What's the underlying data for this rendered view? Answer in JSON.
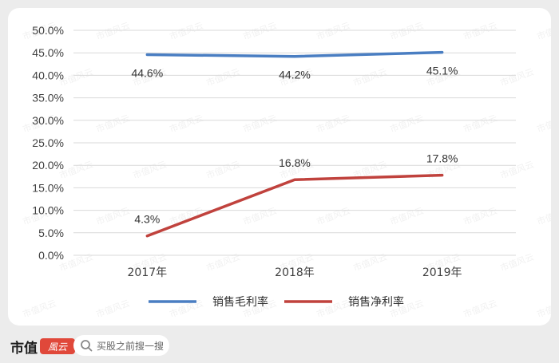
{
  "chart_data": {
    "type": "line",
    "title": "",
    "xlabel": "",
    "ylabel": "",
    "categories": [
      "2017年",
      "2018年",
      "2019年"
    ],
    "ylim": [
      0,
      50
    ],
    "yticks": [
      "0.0%",
      "5.0%",
      "10.0%",
      "15.0%",
      "20.0%",
      "25.0%",
      "30.0%",
      "35.0%",
      "40.0%",
      "45.0%",
      "50.0%"
    ],
    "grid": true,
    "legend_position": "bottom",
    "series": [
      {
        "name": "销售毛利率",
        "color": "#4a7ec2",
        "values": [
          44.6,
          44.2,
          45.1
        ],
        "labels": [
          "44.6%",
          "44.2%",
          "45.1%"
        ],
        "label_side": "below"
      },
      {
        "name": "销售净利率",
        "color": "#c0423d",
        "values": [
          4.3,
          16.8,
          17.8
        ],
        "labels": [
          "4.3%",
          "16.8%",
          "17.8%"
        ],
        "label_side": "above"
      }
    ]
  },
  "watermark": "市值风云",
  "footer": {
    "brand": "市值",
    "brand_seal": "風云",
    "search_icon": "search-icon",
    "search_text": "买股之前搜一搜"
  }
}
